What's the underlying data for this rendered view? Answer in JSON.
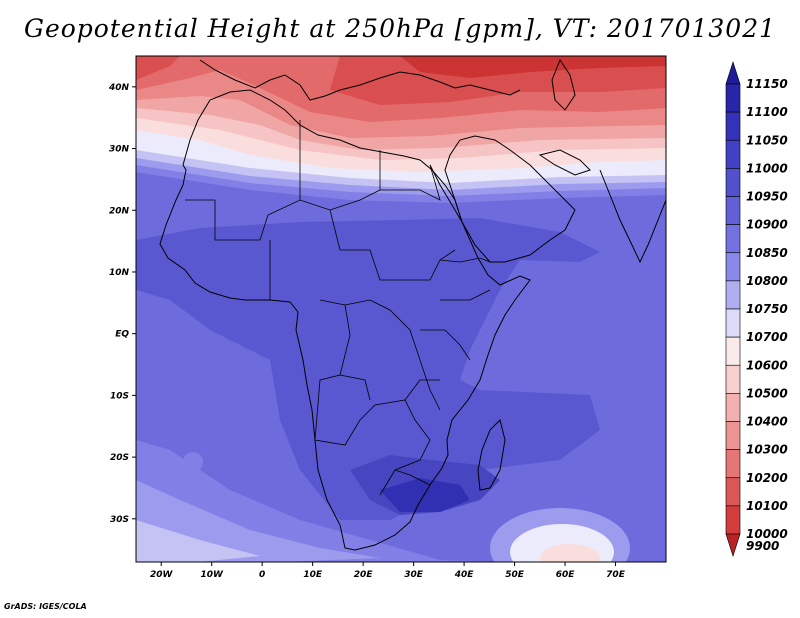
{
  "title": "Geopotential Height at 250hPa [gpm], VT: 2017013021",
  "credit": "GrADS: IGES/COLA",
  "map": {
    "lon_range": [
      -25,
      80
    ],
    "lat_range": [
      -37,
      45
    ],
    "lat_ticks": [
      {
        "value": 40,
        "label": "40N"
      },
      {
        "value": 30,
        "label": "30N"
      },
      {
        "value": 20,
        "label": "20N"
      },
      {
        "value": 10,
        "label": "10N"
      },
      {
        "value": 0,
        "label": "EQ"
      },
      {
        "value": -10,
        "label": "10S"
      },
      {
        "value": -20,
        "label": "20S"
      },
      {
        "value": -30,
        "label": "30S"
      }
    ],
    "lon_ticks": [
      {
        "value": -20,
        "label": "20W"
      },
      {
        "value": -10,
        "label": "10W"
      },
      {
        "value": 0,
        "label": "0"
      },
      {
        "value": 10,
        "label": "10E"
      },
      {
        "value": 20,
        "label": "20E"
      },
      {
        "value": 30,
        "label": "30E"
      },
      {
        "value": 40,
        "label": "40E"
      },
      {
        "value": 50,
        "label": "50E"
      },
      {
        "value": 60,
        "label": "60E"
      },
      {
        "value": 70,
        "label": "70E"
      }
    ]
  },
  "colorbar": {
    "levels": [
      "11150",
      "11100",
      "11050",
      "11000",
      "10950",
      "10900",
      "10850",
      "10800",
      "10750",
      "10700",
      "10600",
      "10500",
      "10400",
      "10300",
      "10200",
      "10100",
      "10000",
      "9900"
    ],
    "colors": [
      "#1e1c9a",
      "#2826a8",
      "#3432b8",
      "#4240c4",
      "#5250cc",
      "#6260d6",
      "#7472e0",
      "#8a88e8",
      "#b0aef0",
      "#dcdcf8",
      "#fbeaea",
      "#f8cfcf",
      "#f3b0b0",
      "#ec9494",
      "#e47676",
      "#dc5858",
      "#d23c3c",
      "#b82222"
    ]
  },
  "field_colors": {
    "c_11050": "#3230b2",
    "c_11000": "#4745c0",
    "c_10950": "#5a58d0",
    "c_10900": "#6e6cdc",
    "c_10850": "#8280e6",
    "c_10800": "#9d9bed",
    "c_10750": "#c4c3f4",
    "c_10700": "#ebebfb",
    "c_10600": "#fadede",
    "c_10500": "#f6c4c4",
    "c_10400": "#f1a6a6",
    "c_10300": "#ea8888",
    "c_10200": "#e26a6a",
    "c_10100": "#d94e4e",
    "c_10000": "#cc3434"
  }
}
